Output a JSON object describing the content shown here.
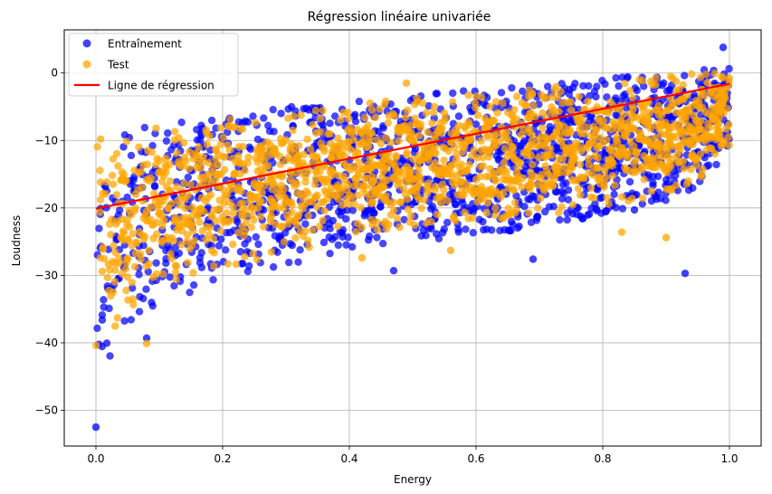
{
  "chart_data": {
    "type": "scatter",
    "title": "Régression linéaire univariée",
    "xlabel": "Energy",
    "ylabel": "Loudness",
    "xlim": [
      -0.05,
      1.05
    ],
    "ylim": [
      -55.3,
      6.4
    ],
    "x_ticks": [
      0.0,
      0.2,
      0.4,
      0.6,
      0.8,
      1.0
    ],
    "x_tick_labels": [
      "0.0",
      "0.2",
      "0.4",
      "0.6",
      "0.8",
      "1.0"
    ],
    "y_ticks": [
      -50,
      -40,
      -30,
      -20,
      -10,
      0
    ],
    "y_tick_labels": [
      "−50",
      "−40",
      "−30",
      "−20",
      "−10",
      "0"
    ],
    "grid": true,
    "legend_position": "top-left",
    "series": [
      {
        "name": "Entraînement",
        "kind": "scatter",
        "color": "#0000ff",
        "band": {
          "x": [
            0.0,
            0.05,
            0.1,
            0.2,
            0.3,
            0.4,
            0.5,
            0.6,
            0.7,
            0.8,
            0.9,
            0.95,
            1.0
          ],
          "upper": [
            -8,
            -8.5,
            -7,
            -6,
            -5,
            -4,
            -3,
            -2.5,
            -1.5,
            -0.8,
            0,
            0.5,
            1.5
          ],
          "lower": [
            -46,
            -37,
            -34,
            -31,
            -29,
            -26,
            -25,
            -24,
            -23,
            -21,
            -19,
            -17,
            -12
          ]
        },
        "notable_points": [
          {
            "x": 0.0,
            "y": -52.5
          },
          {
            "x": 0.93,
            "y": -29.7
          },
          {
            "x": 0.99,
            "y": 3.8
          },
          {
            "x": 0.47,
            "y": -29.3
          },
          {
            "x": 0.69,
            "y": -27.6
          },
          {
            "x": 0.08,
            "y": -39.3
          },
          {
            "x": 0.85,
            "y": -20.3
          }
        ]
      },
      {
        "name": "Test",
        "kind": "scatter",
        "color": "#ffa500",
        "band": {
          "x": [
            0.0,
            0.05,
            0.1,
            0.2,
            0.3,
            0.4,
            0.5,
            0.6,
            0.7,
            0.8,
            0.9,
            0.95,
            1.0
          ],
          "upper": [
            -8.5,
            -9,
            -7.5,
            -6.5,
            -5.5,
            -4.5,
            -3.5,
            -3,
            -2,
            -1.2,
            -0.5,
            0,
            1
          ],
          "lower": [
            -43,
            -35,
            -32,
            -29,
            -27,
            -24,
            -23,
            -22,
            -21,
            -20,
            -18,
            -16,
            -11
          ]
        },
        "notable_points": [
          {
            "x": 0.08,
            "y": -40.1
          },
          {
            "x": 0.42,
            "y": -27.4
          },
          {
            "x": 0.9,
            "y": -24.4
          },
          {
            "x": 0.83,
            "y": -23.6
          },
          {
            "x": 0.49,
            "y": -1.5
          },
          {
            "x": 0.56,
            "y": -26.3
          }
        ]
      },
      {
        "name": "Ligne de régression",
        "kind": "line",
        "color": "#ff0000",
        "x": [
          0.0,
          1.0
        ],
        "y": [
          -20.1,
          -1.6
        ]
      }
    ]
  }
}
